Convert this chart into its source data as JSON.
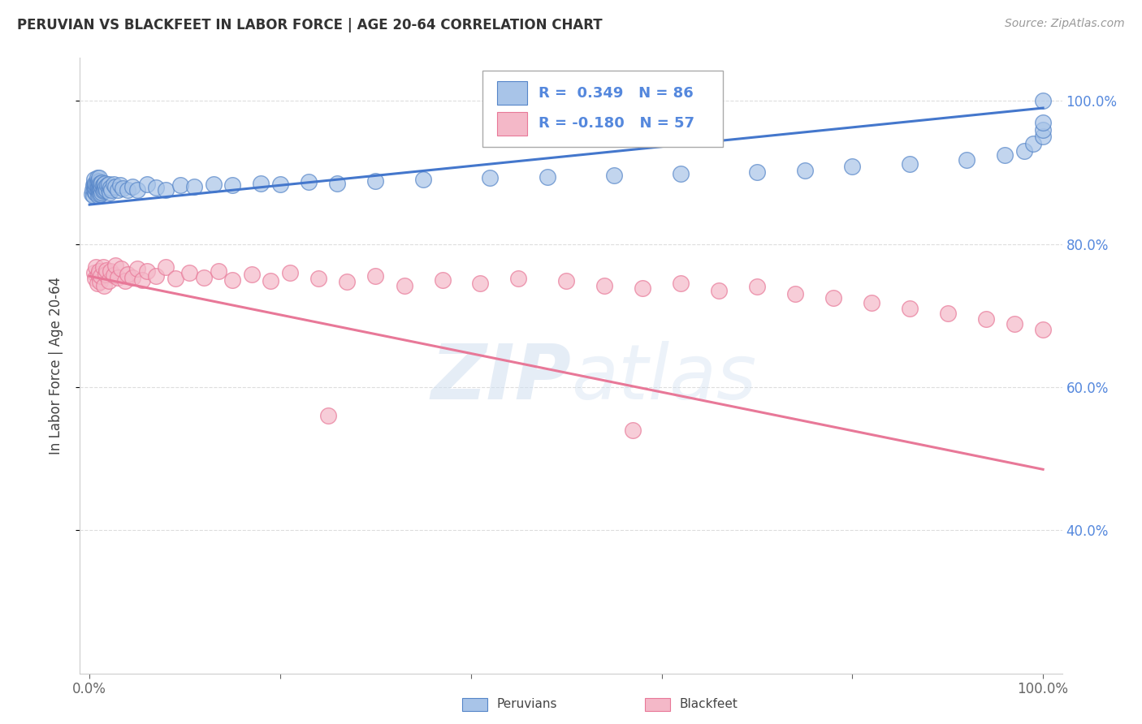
{
  "title": "PERUVIAN VS BLACKFEET IN LABOR FORCE | AGE 20-64 CORRELATION CHART",
  "source": "Source: ZipAtlas.com",
  "ylabel": "In Labor Force | Age 20-64",
  "blue_r": 0.349,
  "blue_n": 86,
  "pink_r": -0.18,
  "pink_n": 57,
  "blue_fill": "#A8C4E8",
  "blue_edge": "#5585C8",
  "pink_fill": "#F4B8C8",
  "pink_edge": "#E87898",
  "blue_line": "#4477CC",
  "pink_line": "#E87898",
  "watermark": "ZIPatlas",
  "background": "#FFFFFF",
  "legend_blue": "Peruvians",
  "legend_pink": "Blackfeet",
  "ytick_color": "#5588DD",
  "title_color": "#333333",
  "source_color": "#999999",
  "grid_color": "#DDDDDD",
  "blue_x": [
    0.002,
    0.003,
    0.004,
    0.004,
    0.005,
    0.005,
    0.005,
    0.006,
    0.006,
    0.006,
    0.007,
    0.007,
    0.007,
    0.008,
    0.008,
    0.008,
    0.008,
    0.009,
    0.009,
    0.009,
    0.009,
    0.01,
    0.01,
    0.01,
    0.01,
    0.01,
    0.011,
    0.011,
    0.011,
    0.012,
    0.012,
    0.012,
    0.013,
    0.013,
    0.013,
    0.014,
    0.014,
    0.015,
    0.015,
    0.016,
    0.016,
    0.017,
    0.018,
    0.019,
    0.02,
    0.02,
    0.021,
    0.022,
    0.023,
    0.025,
    0.027,
    0.03,
    0.032,
    0.035,
    0.04,
    0.045,
    0.05,
    0.06,
    0.07,
    0.08,
    0.095,
    0.11,
    0.13,
    0.15,
    0.18,
    0.2,
    0.23,
    0.26,
    0.3,
    0.35,
    0.42,
    0.48,
    0.55,
    0.62,
    0.7,
    0.75,
    0.8,
    0.86,
    0.92,
    0.96,
    0.98,
    0.99,
    1.0,
    1.0,
    1.0,
    1.0
  ],
  "blue_y": [
    0.87,
    0.875,
    0.868,
    0.882,
    0.876,
    0.884,
    0.89,
    0.872,
    0.879,
    0.885,
    0.871,
    0.878,
    0.883,
    0.874,
    0.88,
    0.886,
    0.892,
    0.868,
    0.874,
    0.88,
    0.888,
    0.87,
    0.876,
    0.882,
    0.887,
    0.893,
    0.872,
    0.878,
    0.885,
    0.87,
    0.877,
    0.883,
    0.872,
    0.88,
    0.886,
    0.874,
    0.882,
    0.876,
    0.883,
    0.878,
    0.885,
    0.88,
    0.875,
    0.882,
    0.877,
    0.884,
    0.872,
    0.879,
    0.876,
    0.883,
    0.88,
    0.876,
    0.882,
    0.878,
    0.875,
    0.88,
    0.876,
    0.883,
    0.879,
    0.876,
    0.882,
    0.88,
    0.883,
    0.882,
    0.885,
    0.883,
    0.887,
    0.885,
    0.888,
    0.89,
    0.892,
    0.894,
    0.896,
    0.898,
    0.9,
    0.903,
    0.908,
    0.912,
    0.918,
    0.924,
    0.93,
    0.94,
    0.95,
    0.96,
    0.97,
    1.0
  ],
  "pink_x": [
    0.005,
    0.006,
    0.007,
    0.008,
    0.009,
    0.01,
    0.011,
    0.012,
    0.014,
    0.015,
    0.017,
    0.018,
    0.02,
    0.022,
    0.025,
    0.027,
    0.03,
    0.033,
    0.037,
    0.04,
    0.045,
    0.05,
    0.055,
    0.06,
    0.07,
    0.08,
    0.09,
    0.105,
    0.12,
    0.135,
    0.15,
    0.17,
    0.19,
    0.21,
    0.24,
    0.27,
    0.3,
    0.33,
    0.37,
    0.41,
    0.45,
    0.5,
    0.54,
    0.58,
    0.62,
    0.66,
    0.7,
    0.74,
    0.78,
    0.82,
    0.86,
    0.9,
    0.94,
    0.97,
    1.0,
    0.25,
    0.57
  ],
  "pink_y": [
    0.76,
    0.752,
    0.768,
    0.745,
    0.758,
    0.762,
    0.747,
    0.755,
    0.768,
    0.742,
    0.757,
    0.763,
    0.748,
    0.762,
    0.756,
    0.77,
    0.753,
    0.765,
    0.749,
    0.758,
    0.753,
    0.766,
    0.75,
    0.762,
    0.755,
    0.768,
    0.752,
    0.76,
    0.753,
    0.762,
    0.75,
    0.758,
    0.748,
    0.76,
    0.752,
    0.747,
    0.755,
    0.742,
    0.75,
    0.745,
    0.752,
    0.748,
    0.742,
    0.738,
    0.745,
    0.735,
    0.74,
    0.73,
    0.725,
    0.718,
    0.71,
    0.703,
    0.695,
    0.688,
    0.68,
    0.56,
    0.54
  ]
}
